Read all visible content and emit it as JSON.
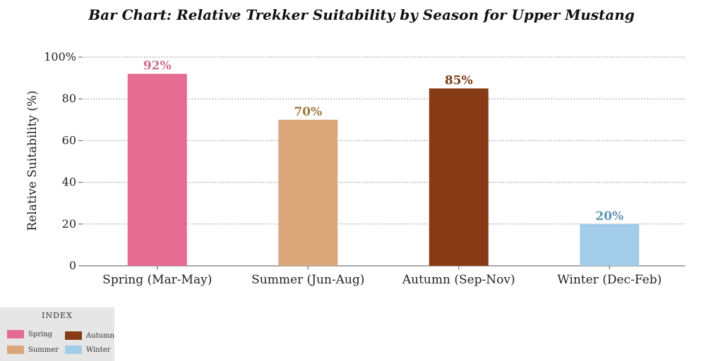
{
  "chart_data": {
    "type": "bar",
    "title": "Bar Chart: Relative Trekker Suitability by Season for Upper Mustang",
    "xlabel": "",
    "ylabel": "Relative Suitability (%)",
    "ylim": [
      0,
      100
    ],
    "yticks": [
      0,
      20,
      40,
      60,
      80,
      100
    ],
    "ytick_labels": [
      "0",
      "20",
      "40",
      "60",
      "80",
      "100%"
    ],
    "grid": true,
    "categories": [
      "Spring (Mar-May)",
      "Summer (Jun-Aug)",
      "Autumn (Sep-Nov)",
      "Winter (Dec-Feb)"
    ],
    "values": [
      92,
      70,
      85,
      20
    ],
    "data_labels": [
      "92%",
      "70%",
      "85%",
      "20%"
    ],
    "bar_colors": [
      "#e66b93",
      "#d9a77a",
      "#873b14",
      "#a3cce9"
    ],
    "label_colors": [
      "#cc6f8e",
      "#9c7a45",
      "#7a3a14",
      "#5f93b3"
    ],
    "legend": {
      "title": "INDEX",
      "placement": "bottom-left",
      "entries": [
        {
          "label": "Spring",
          "color": "#e66b93"
        },
        {
          "label": "Autumn",
          "color": "#873b14"
        },
        {
          "label": "Summer",
          "color": "#d9a77a"
        },
        {
          "label": "Winter",
          "color": "#a3cce9"
        }
      ]
    }
  }
}
